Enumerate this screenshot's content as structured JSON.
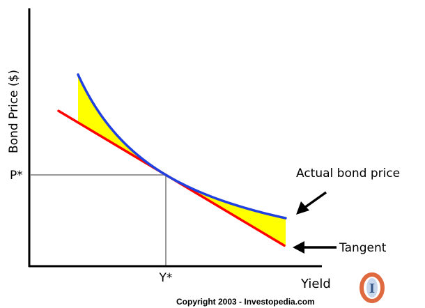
{
  "chart_data": {
    "type": "line",
    "title": "",
    "xlabel": "Yield",
    "ylabel": "Bond Price ($)",
    "x_tick_labels": [
      "Y*"
    ],
    "y_tick_labels": [
      "P*"
    ],
    "series": [
      {
        "name": "Actual bond price",
        "color": "#2040e0",
        "shape": "convex-curve"
      },
      {
        "name": "Tangent",
        "color": "#ff0000",
        "shape": "tangent-line"
      }
    ],
    "shaded_region": {
      "between": [
        "Actual bond price",
        "Tangent"
      ],
      "color": "#ffff00"
    },
    "annotations": [
      {
        "text": "Actual bond price",
        "points_to": "Actual bond price"
      },
      {
        "text": "Tangent",
        "points_to": "Tangent"
      }
    ],
    "grid": false,
    "reference_lines": {
      "x": "Y*",
      "y": "P*",
      "color": "#999999"
    }
  },
  "footer": {
    "copyright": "Copyright 2003 - Investopedia.com",
    "logo_letter": "I"
  }
}
